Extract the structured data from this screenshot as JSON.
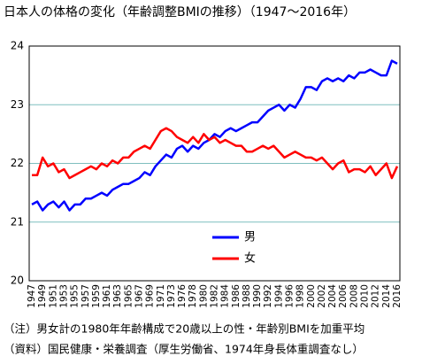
{
  "chart_data": {
    "type": "line",
    "title": "日本人の体格の変化（年齢調整BMIの推移）（1947〜2016年）",
    "categories": [
      "1947",
      null,
      "1949",
      null,
      "1951",
      null,
      "1953",
      null,
      "1955",
      null,
      "1957",
      null,
      "1959",
      null,
      "1961",
      null,
      "1963",
      null,
      "1965",
      null,
      "1967",
      null,
      "1969",
      null,
      "1971",
      null,
      "1973",
      null,
      "1976",
      null,
      "1978",
      null,
      "1980",
      null,
      "1982",
      null,
      "1984",
      null,
      "1986",
      null,
      "1988",
      null,
      "1990",
      null,
      "1992",
      null,
      "1994",
      null,
      "1996",
      null,
      "1998",
      null,
      "2000",
      null,
      "2002",
      null,
      "2004",
      null,
      "2006",
      null,
      "2008",
      null,
      "2010",
      null,
      "2012",
      null,
      "2014",
      null,
      "2016"
    ],
    "series": [
      {
        "name": "男",
        "color": "#0000ff",
        "values": [
          21.3,
          21.35,
          21.2,
          21.3,
          21.35,
          21.25,
          21.35,
          21.2,
          21.3,
          21.3,
          21.4,
          21.4,
          21.45,
          21.5,
          21.45,
          21.55,
          21.6,
          21.65,
          21.65,
          21.7,
          21.75,
          21.85,
          21.8,
          21.95,
          22.05,
          22.15,
          22.1,
          22.25,
          22.3,
          22.2,
          22.3,
          22.25,
          22.35,
          22.4,
          22.5,
          22.45,
          22.55,
          22.6,
          22.55,
          22.6,
          22.65,
          22.7,
          22.7,
          22.8,
          22.9,
          22.95,
          23.0,
          22.9,
          23.0,
          22.95,
          23.1,
          23.3,
          23.3,
          23.25,
          23.4,
          23.45,
          23.4,
          23.45,
          23.4,
          23.5,
          23.45,
          23.55,
          23.55,
          23.6,
          23.55,
          23.5,
          23.5,
          23.75,
          23.7
        ]
      },
      {
        "name": "女",
        "color": "#ff0000",
        "values": [
          21.8,
          21.8,
          22.1,
          21.95,
          22.0,
          21.85,
          21.9,
          21.75,
          21.8,
          21.85,
          21.9,
          21.95,
          21.9,
          22.0,
          21.95,
          22.05,
          22.0,
          22.1,
          22.1,
          22.2,
          22.25,
          22.3,
          22.25,
          22.4,
          22.55,
          22.6,
          22.55,
          22.45,
          22.4,
          22.35,
          22.45,
          22.35,
          22.5,
          22.4,
          22.45,
          22.35,
          22.4,
          22.35,
          22.3,
          22.3,
          22.2,
          22.2,
          22.25,
          22.3,
          22.25,
          22.3,
          22.2,
          22.1,
          22.15,
          22.2,
          22.15,
          22.1,
          22.1,
          22.05,
          22.1,
          22.0,
          21.9,
          22.0,
          22.05,
          21.85,
          21.9,
          21.9,
          21.85,
          21.95,
          21.8,
          21.9,
          22.0,
          21.75,
          21.95
        ]
      }
    ],
    "ylim": [
      20,
      24
    ],
    "yticks": [
      20,
      21,
      22,
      23,
      24
    ],
    "grid": true,
    "notes": [
      "（注）男女計の1980年年齢構成で20歳以上の性・年齢別BMIを加重平均",
      "（資料）国民健康・栄養調査（厚生労働省、1974年身長体重調査なし）"
    ]
  }
}
